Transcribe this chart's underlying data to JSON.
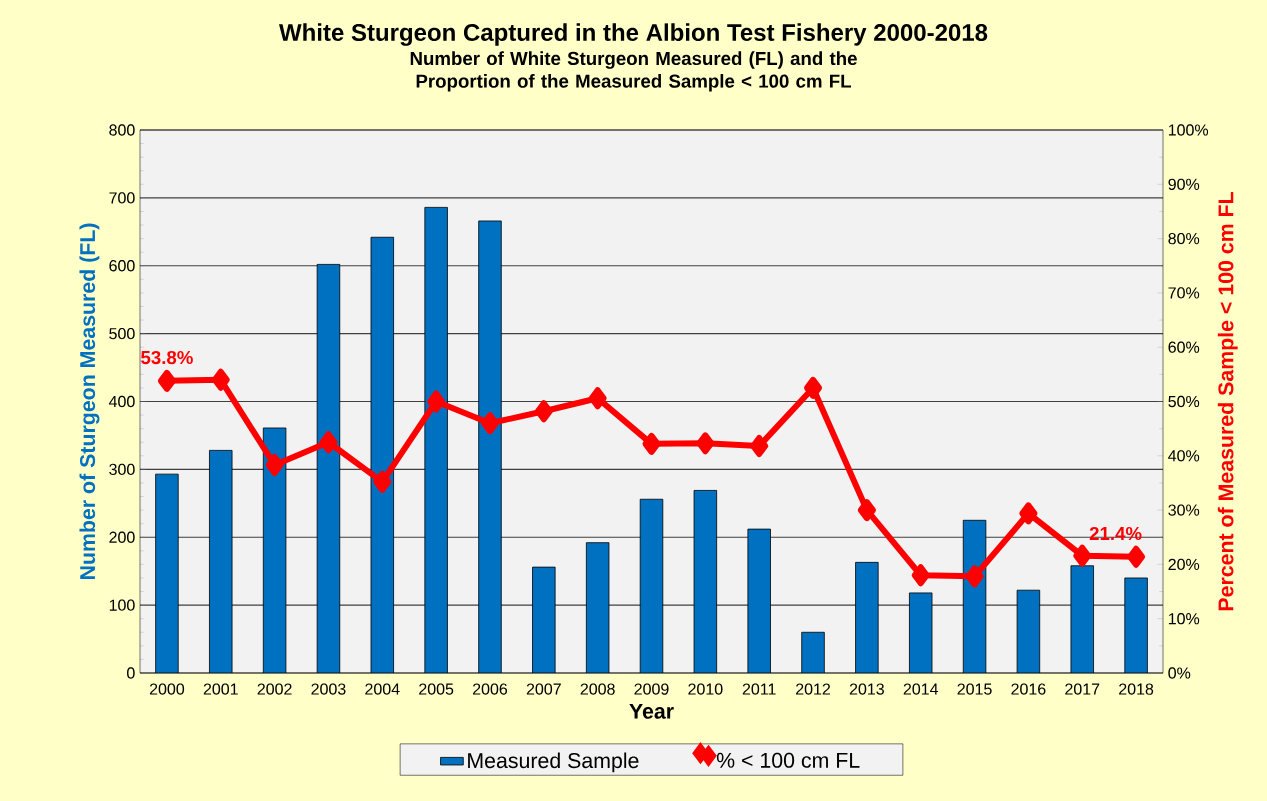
{
  "chart_data": {
    "type": "bar",
    "title": "White Sturgeon Captured in the Albion Test Fishery 2000-2018",
    "subtitle": "Number of White Sturgeon Measured (FL) and the Proportion of the Measured Sample < 100 cm FL",
    "xlabel": "Year",
    "ylabel": "Number of Sturgeon Measured (FL)",
    "y2label": "Percent of Measured Sample < 100 cm FL",
    "categories": [
      "2000",
      "2001",
      "2002",
      "2003",
      "2004",
      "2005",
      "2006",
      "2007",
      "2008",
      "2009",
      "2010",
      "2011",
      "2012",
      "2013",
      "2014",
      "2015",
      "2016",
      "2017",
      "2018"
    ],
    "series": [
      {
        "name": "Measured Sample",
        "color": "#0070c0",
        "values": [
          293,
          328,
          361,
          602,
          642,
          686,
          666,
          156,
          192,
          256,
          269,
          212,
          60,
          163,
          118,
          225,
          122,
          158,
          140
        ]
      },
      {
        "name": "% < 100 cm FL",
        "type": "line",
        "axis": "y2",
        "color": "#ff0000",
        "marker": "diamond",
        "line_style": "solid",
        "values": [
          53.8,
          54.0,
          38.3,
          42.5,
          35.2,
          50.0,
          46.0,
          48.2,
          50.6,
          42.2,
          42.3,
          41.8,
          52.5,
          30.0,
          18.0,
          17.8,
          29.4,
          21.6,
          21.4
        ],
        "value_labels": [
          "53.8%",
          null,
          null,
          null,
          null,
          null,
          null,
          null,
          null,
          null,
          null,
          null,
          null,
          null,
          null,
          null,
          null,
          null,
          "21.4%"
        ]
      }
    ],
    "ylim": [
      0,
      800
    ],
    "yticks": [
      0,
      100,
      200,
      300,
      400,
      500,
      600,
      700,
      800
    ],
    "y2lim": [
      0,
      100
    ],
    "y2ticks": [
      {
        "value": 0,
        "label": "0%"
      },
      {
        "value": 10,
        "label": "10%"
      },
      {
        "value": 20,
        "label": "20%"
      },
      {
        "value": 30,
        "label": "30%"
      },
      {
        "value": 40,
        "label": "40%"
      },
      {
        "value": 50,
        "label": "50%"
      },
      {
        "value": 60,
        "label": "60%"
      },
      {
        "value": 70,
        "label": "70%"
      },
      {
        "value": 80,
        "label": "80%"
      },
      {
        "value": 90,
        "label": "90%"
      },
      {
        "value": 100,
        "label": "100%"
      }
    ],
    "grid": "y",
    "legend": "bottom"
  }
}
